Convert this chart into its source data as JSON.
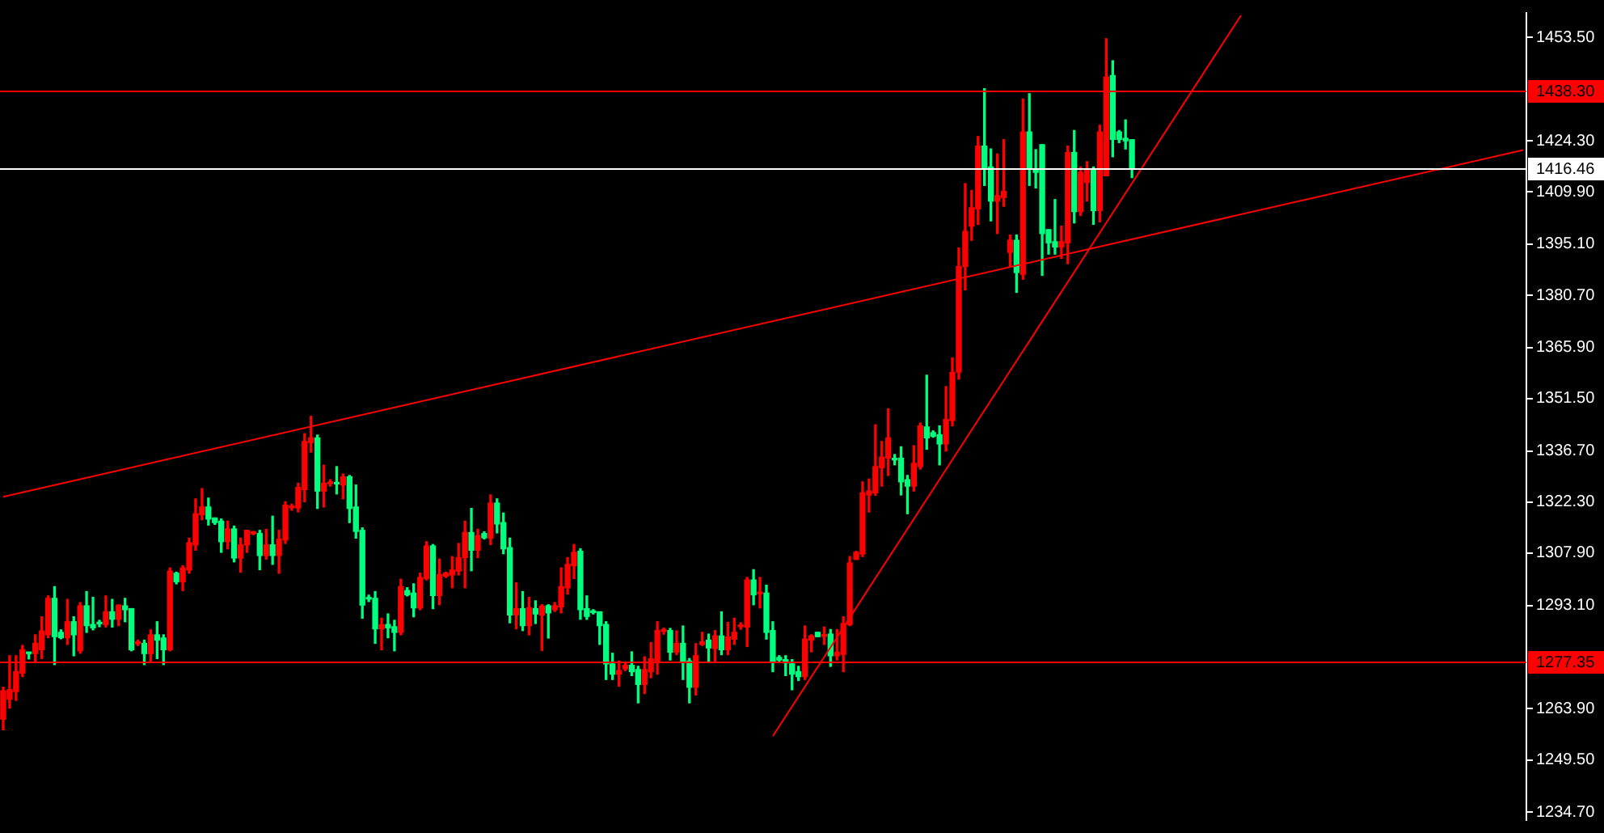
{
  "chart_data": {
    "type": "candlestick",
    "categories": [
      null,
      null,
      null,
      null,
      null,
      null,
      null,
      null,
      null,
      null,
      null,
      null,
      null,
      null,
      null,
      null,
      null,
      null,
      null,
      null,
      null,
      null,
      null,
      null,
      null,
      null,
      null,
      null,
      null,
      null,
      null,
      null,
      null,
      null,
      null,
      null,
      null,
      null,
      null,
      null,
      null,
      null,
      null,
      null,
      null,
      null,
      null,
      null,
      null,
      null,
      null,
      null,
      null,
      null,
      null,
      null,
      null,
      null,
      null,
      null,
      null,
      null,
      null,
      null,
      null,
      null,
      null,
      null,
      null,
      null,
      null,
      null,
      null,
      null,
      null,
      null,
      null,
      null,
      null,
      null,
      null,
      null,
      null,
      null,
      null,
      null,
      null,
      null,
      null,
      null,
      null,
      null,
      null,
      null,
      null,
      null,
      null,
      null,
      null,
      null,
      null,
      null,
      null,
      null,
      null,
      null,
      null,
      null,
      null,
      null,
      null,
      null,
      null,
      null,
      null,
      null,
      null,
      null,
      null,
      null,
      null,
      null,
      null,
      null,
      null,
      null,
      null,
      null,
      null,
      null,
      null,
      null,
      null,
      null,
      null,
      null,
      null,
      null,
      null,
      null,
      null,
      null,
      null,
      null,
      null,
      null,
      null,
      null,
      null,
      null,
      null,
      null,
      null,
      null,
      null,
      null,
      null,
      null,
      null,
      null,
      null,
      null,
      null,
      null,
      null,
      null,
      null,
      null,
      null,
      null,
      null,
      null,
      null,
      null,
      null,
      null,
      null,
      null,
      null,
      null,
      null,
      null,
      null,
      null,
      null,
      null,
      null,
      null,
      null,
      null,
      null,
      null,
      null,
      null,
      null,
      null,
      null,
      null,
      null,
      null,
      null,
      null,
      null,
      null,
      null,
      null,
      null,
      null,
      null,
      null,
      null,
      null,
      null,
      null,
      null,
      null,
      null,
      null,
      null,
      null,
      null,
      null,
      null,
      null,
      null,
      null,
      null,
      null,
      null,
      null,
      null,
      null,
      null,
      null,
      null,
      null,
      null,
      null
    ],
    "ohlc": [
      [
        1261,
        1270,
        1258,
        1269
      ],
      [
        1266.6,
        1278.9,
        1264.1,
        1269.3
      ],
      [
        1268.8,
        1278.9,
        1266.3,
        1274.4
      ],
      [
        1274,
        1281.8,
        1273,
        1280.6
      ],
      [
        1279.7,
        1279.7,
        1278,
        1279.5
      ],
      [
        1279.5,
        1284.8,
        1277.4,
        1282.4
      ],
      [
        1280.6,
        1289.9,
        1278.1,
        1285.9
      ],
      [
        1284.8,
        1295.8,
        1284,
        1295.1
      ],
      [
        1295.1,
        1298.4,
        1276.4,
        1284.3
      ],
      [
        1285.5,
        1286.2,
        1283.7,
        1284
      ],
      [
        1284,
        1294.8,
        1282.1,
        1288.5
      ],
      [
        1288.5,
        1289.9,
        1278.9,
        1284.8
      ],
      [
        1280.3,
        1293.9,
        1279.6,
        1293
      ],
      [
        1293,
        1297,
        1285.5,
        1287.4
      ],
      [
        1287.7,
        1295.4,
        1286.2,
        1286.8
      ],
      [
        1288.1,
        1288.9,
        1287.1,
        1287.9
      ],
      [
        1287.7,
        1295.8,
        1287,
        1291.3
      ],
      [
        1291.3,
        1294.8,
        1287,
        1289.2
      ],
      [
        1289.2,
        1293.2,
        1287.4,
        1293.2
      ],
      [
        1293,
        1295.1,
        1288.5,
        1291.9
      ],
      [
        1292.2,
        1292.2,
        1280.3,
        1280.6
      ],
      [
        1282.3,
        1283.3,
        1281.8,
        1282.8
      ],
      [
        1282.4,
        1283.3,
        1276.4,
        1279.5
      ],
      [
        1279.5,
        1286.2,
        1277.4,
        1284.8
      ],
      [
        1284.8,
        1288.5,
        1278.1,
        1283.3
      ],
      [
        1283.9,
        1284.8,
        1276.4,
        1280.6
      ],
      [
        1280.6,
        1303.7,
        1280.3,
        1302.8
      ],
      [
        1302.2,
        1302.5,
        1299.2,
        1299.8
      ],
      [
        1299.8,
        1304.3,
        1297.3,
        1303.7
      ],
      [
        1303.1,
        1312.1,
        1302.2,
        1310.8
      ],
      [
        1310.2,
        1323.2,
        1308.7,
        1319
      ],
      [
        1318.7,
        1326.1,
        1317.3,
        1320.9
      ],
      [
        1320.9,
        1323.4,
        1315.8,
        1317.5
      ],
      [
        1317.8,
        1317.8,
        1316,
        1316.5
      ],
      [
        1316.9,
        1317.5,
        1308.1,
        1311.1
      ],
      [
        1311.1,
        1316.9,
        1309.1,
        1314.7
      ],
      [
        1314.7,
        1315.5,
        1305.4,
        1306.5
      ],
      [
        1306.5,
        1312.1,
        1302.5,
        1310.2
      ],
      [
        1310.2,
        1314.3,
        1308.1,
        1314.3
      ],
      [
        1313.4,
        1314,
        1313.1,
        1313.7
      ],
      [
        1313.4,
        1314.3,
        1303.2,
        1307.2
      ],
      [
        1307.2,
        1314.6,
        1306.2,
        1310.2
      ],
      [
        1310.2,
        1318.3,
        1304.7,
        1307.2
      ],
      [
        1307.2,
        1314.3,
        1302.2,
        1311.8
      ],
      [
        1311.6,
        1322.4,
        1310.6,
        1321.4
      ],
      [
        1320.7,
        1321.7,
        1320,
        1321.1
      ],
      [
        1320.6,
        1327.6,
        1319.5,
        1326.4
      ],
      [
        1325.8,
        1341.6,
        1322.4,
        1339.4
      ],
      [
        1339.1,
        1346.5,
        1336.4,
        1340.4
      ],
      [
        1340.4,
        1341.2,
        1320.5,
        1325.4
      ],
      [
        1325.4,
        1332.7,
        1320.9,
        1327.6
      ],
      [
        1327.5,
        1328.6,
        1326.8,
        1327.8
      ],
      [
        1327.6,
        1332.3,
        1324.6,
        1327.4
      ],
      [
        1327.1,
        1330.2,
        1323.2,
        1329.4
      ],
      [
        1329.4,
        1329.8,
        1316.5,
        1320.5
      ],
      [
        1320.9,
        1327.1,
        1312.1,
        1314
      ],
      [
        1314.3,
        1315,
        1289.5,
        1293.2
      ],
      [
        1295.1,
        1296,
        1294.2,
        1294.9
      ],
      [
        1295.1,
        1297,
        1282.4,
        1286.5
      ],
      [
        1286.5,
        1289.5,
        1280.6,
        1287.7
      ],
      [
        1287.7,
        1290.7,
        1284,
        1286.8
      ],
      [
        1287.1,
        1288.9,
        1280.3,
        1285.5
      ],
      [
        1285.5,
        1300.5,
        1284.8,
        1298.4
      ],
      [
        1297.3,
        1298.1,
        1295.8,
        1296.1
      ],
      [
        1296.6,
        1299.2,
        1289.9,
        1292.4
      ],
      [
        1292.4,
        1302.2,
        1291.9,
        1301
      ],
      [
        1300.7,
        1311.1,
        1300.3,
        1309.9
      ],
      [
        1309.9,
        1310.3,
        1292.2,
        1295.9
      ],
      [
        1295.9,
        1306.2,
        1293.3,
        1301.8
      ],
      [
        1301.4,
        1302.5,
        1301,
        1302.2
      ],
      [
        1301.7,
        1306.9,
        1298.1,
        1303.1
      ],
      [
        1302.8,
        1310.6,
        1301.7,
        1306.6
      ],
      [
        1306.6,
        1316.9,
        1298.1,
        1313.7
      ],
      [
        1313.7,
        1320.5,
        1302.9,
        1308.7
      ],
      [
        1308.7,
        1314.6,
        1306.6,
        1312.8
      ],
      [
        1313.4,
        1313.9,
        1311.9,
        1312.2
      ],
      [
        1312.1,
        1324.3,
        1310.3,
        1322
      ],
      [
        1322,
        1323.2,
        1313.6,
        1316.1
      ],
      [
        1316.5,
        1319.2,
        1307.7,
        1309.1
      ],
      [
        1309.4,
        1312.1,
        1288.2,
        1290.4
      ],
      [
        1290.4,
        1299.5,
        1286.5,
        1292.2
      ],
      [
        1292.2,
        1297,
        1286,
        1287.4
      ],
      [
        1287.4,
        1295.4,
        1284.8,
        1292.4
      ],
      [
        1292.2,
        1294.4,
        1288,
        1290.7
      ],
      [
        1290.4,
        1293.3,
        1280.4,
        1292.9
      ],
      [
        1293,
        1293.3,
        1283.9,
        1291
      ],
      [
        1291.9,
        1293.9,
        1291.4,
        1293
      ],
      [
        1292.7,
        1303.7,
        1291,
        1298.4
      ],
      [
        1298.1,
        1306.6,
        1296.3,
        1304.7
      ],
      [
        1304.3,
        1310.3,
        1300.7,
        1308.1
      ],
      [
        1308.4,
        1309.1,
        1289.2,
        1291.9
      ],
      [
        1292.2,
        1295.8,
        1289.2,
        1290
      ],
      [
        1291.3,
        1291.9,
        1290.7,
        1291.1
      ],
      [
        1291.3,
        1291.3,
        1282.1,
        1287.4
      ],
      [
        1287.7,
        1288.5,
        1272.2,
        1276.6
      ],
      [
        1276.6,
        1279.6,
        1272.2,
        1273.7
      ],
      [
        1273.7,
        1277.4,
        1270.3,
        1274.7
      ],
      [
        1275.2,
        1276.7,
        1274.7,
        1276.2
      ],
      [
        1276.2,
        1280,
        1273.3,
        1274.4
      ],
      [
        1275,
        1275.9,
        1265.6,
        1270.8
      ],
      [
        1270.8,
        1278.6,
        1268.2,
        1275
      ],
      [
        1274.4,
        1282.6,
        1272.7,
        1278
      ],
      [
        1277.4,
        1288.5,
        1273.7,
        1286
      ],
      [
        1285.8,
        1286.7,
        1285,
        1286.1
      ],
      [
        1286,
        1286.6,
        1277.7,
        1279.9
      ],
      [
        1279.9,
        1285.9,
        1279.2,
        1282.4
      ],
      [
        1282.4,
        1287.3,
        1272.2,
        1277.1
      ],
      [
        1277.4,
        1278.1,
        1265.6,
        1270
      ],
      [
        1270,
        1282.3,
        1267.8,
        1278.9
      ],
      [
        1282.1,
        1285.5,
        1281.8,
        1282.8
      ],
      [
        1283.3,
        1285,
        1277.1,
        1281.1
      ],
      [
        1280.9,
        1286,
        1277.4,
        1284.5
      ],
      [
        1284.5,
        1291.3,
        1279.2,
        1280.6
      ],
      [
        1280.6,
        1288.3,
        1279.2,
        1284.2
      ],
      [
        1283.6,
        1289.5,
        1282.1,
        1285.5
      ],
      [
        1287.1,
        1288.2,
        1286.4,
        1287.4
      ],
      [
        1287,
        1301,
        1281.5,
        1300.3
      ],
      [
        1300.3,
        1303.2,
        1293.3,
        1296.1
      ],
      [
        1296.4,
        1301,
        1292.4,
        1296.7
      ],
      [
        1296.6,
        1298.8,
        1283.6,
        1285.5
      ],
      [
        1286,
        1288.5,
        1274.4,
        1277.1
      ],
      [
        1278.4,
        1278.9,
        1277.4,
        1277.7
      ],
      [
        1277.8,
        1278.9,
        1273.3,
        1276.9
      ],
      [
        1276.6,
        1277.8,
        1269.3,
        1273.7
      ],
      [
        1274.4,
        1275.9,
        1271.9,
        1273
      ],
      [
        1273,
        1287.3,
        1272.2,
        1283.6
      ],
      [
        1283.3,
        1284.8,
        1280,
        1284.5
      ],
      [
        1285.5,
        1285.5,
        1284.3,
        1284.3
      ],
      [
        1284.4,
        1287,
        1282.1,
        1284.6
      ],
      [
        1285,
        1286.3,
        1275.9,
        1278.9
      ],
      [
        1278.9,
        1286.3,
        1277.7,
        1279.9
      ],
      [
        1279.3,
        1289.9,
        1274.4,
        1288
      ],
      [
        1287.7,
        1306.9,
        1287.4,
        1305.1
      ],
      [
        1306.1,
        1308.4,
        1306.1,
        1308.1
      ],
      [
        1307.6,
        1328,
        1306.9,
        1324.9
      ],
      [
        1324.3,
        1328.8,
        1319.5,
        1325.4
      ],
      [
        1324.9,
        1344.1,
        1324.2,
        1332.3
      ],
      [
        1332,
        1339.4,
        1326.8,
        1335
      ],
      [
        1334.7,
        1348.6,
        1329.8,
        1340.4
      ],
      [
        1334.4,
        1335.7,
        1332.8,
        1334.2
      ],
      [
        1334.7,
        1337.9,
        1324.3,
        1328
      ],
      [
        1328.6,
        1329.8,
        1319,
        1326.8
      ],
      [
        1326.8,
        1338.2,
        1325.4,
        1333.2
      ],
      [
        1332.3,
        1344.6,
        1331.6,
        1343.8
      ],
      [
        1343.5,
        1358.1,
        1337.2,
        1340.4
      ],
      [
        1341.9,
        1342.4,
        1340.6,
        1340.9
      ],
      [
        1341.3,
        1343.8,
        1332.8,
        1338.7
      ],
      [
        1338.7,
        1354.9,
        1336.7,
        1345.6
      ],
      [
        1345.3,
        1363,
        1343.8,
        1358.9
      ],
      [
        1359,
        1394,
        1357,
        1388.8
      ],
      [
        1388.8,
        1412.2,
        1382.2,
        1398.7
      ],
      [
        1400.2,
        1410.3,
        1396.2,
        1405.4
      ],
      [
        1405.1,
        1425.5,
        1400.7,
        1422.8
      ],
      [
        1422.8,
        1439,
        1411.7,
        1416.4
      ],
      [
        1416.9,
        1422,
        1401.7,
        1407.3
      ],
      [
        1407.3,
        1420.6,
        1398.1,
        1408.8
      ],
      [
        1408.3,
        1424.6,
        1405.8,
        1410
      ],
      [
        1392.8,
        1397.7,
        1388.8,
        1396.2
      ],
      [
        1396.2,
        1397.7,
        1381.5,
        1387.1
      ],
      [
        1386.6,
        1436.1,
        1385.2,
        1426.8
      ],
      [
        1426.8,
        1437.6,
        1411.7,
        1416.4
      ],
      [
        1416.4,
        1421.8,
        1411,
        1415.4
      ],
      [
        1423.2,
        1423.2,
        1386.3,
        1398.1
      ],
      [
        1399.2,
        1399.2,
        1392.3,
        1395.5
      ],
      [
        1395.8,
        1407.7,
        1392.3,
        1394.3
      ],
      [
        1394.3,
        1400.2,
        1391.1,
        1395.8
      ],
      [
        1395.5,
        1422.8,
        1389.6,
        1421
      ],
      [
        1421,
        1427.2,
        1401.1,
        1404.3
      ],
      [
        1404.3,
        1416.9,
        1403.2,
        1415.4
      ],
      [
        1412.5,
        1418.4,
        1407.3,
        1416.4
      ],
      [
        1416.4,
        1416.9,
        1400.7,
        1404.6
      ],
      [
        1404.6,
        1428.7,
        1401.4,
        1426.8
      ],
      [
        1414.4,
        1453.1,
        1414.4,
        1442.3
      ],
      [
        1442.7,
        1446.9,
        1419.8,
        1424.7
      ],
      [
        1426.8,
        1427.2,
        1423.8,
        1424.7
      ],
      [
        1425,
        1430.2,
        1422,
        1424.3
      ],
      [
        1424.6,
        1424.6,
        1413.9,
        1416.4
      ],
      null,
      null,
      null,
      null,
      null,
      null,
      null,
      null,
      null,
      null,
      null,
      null,
      null,
      null,
      null,
      null,
      null,
      null,
      null,
      null,
      null,
      null,
      null,
      null,
      null,
      null,
      null,
      null,
      null,
      null,
      null,
      null,
      null,
      null,
      null,
      null,
      null,
      null,
      null,
      null,
      null,
      null,
      null,
      null,
      null,
      null,
      null,
      null,
      null,
      null,
      null,
      null,
      null,
      null,
      null,
      null,
      null,
      null,
      null,
      null,
      null
    ],
    "colors": [
      "#ff0000",
      "#ff0000",
      "#ff0000",
      "#ff0000",
      "#00ff7f",
      "#ff0000",
      "#ff0000",
      "#ff0000",
      "#00ff7f",
      "#00ff7f",
      "#ff0000",
      "#00ff7f",
      "#ff0000",
      "#00ff7f",
      "#00ff7f",
      "#00ff7f",
      "#ff0000",
      "#00ff7f",
      "#ff0000",
      "#00ff7f",
      "#00ff7f",
      "#ff0000",
      "#00ff7f",
      "#ff0000",
      "#00ff7f",
      "#00ff7f",
      "#ff0000",
      "#00ff7f",
      "#ff0000",
      "#ff0000",
      "#ff0000",
      "#ff0000",
      "#00ff7f",
      "#00ff7f",
      "#00ff7f",
      "#ff0000",
      "#00ff7f",
      "#ff0000",
      "#ff0000",
      "#ff0000",
      "#00ff7f",
      "#ff0000",
      "#00ff7f",
      "#ff0000",
      "#ff0000",
      "#ff0000",
      "#ff0000",
      "#ff0000",
      "#ff0000",
      "#00ff7f",
      "#ff0000",
      "#ff0000",
      "#00ff7f",
      "#ff0000",
      "#00ff7f",
      "#00ff7f",
      "#00ff7f",
      "#00ff7f",
      "#00ff7f",
      "#ff0000",
      "#00ff7f",
      "#00ff7f",
      "#ff0000",
      "#00ff7f",
      "#00ff7f",
      "#ff0000",
      "#ff0000",
      "#00ff7f",
      "#ff0000",
      "#ff0000",
      "#ff0000",
      "#ff0000",
      "#ff0000",
      "#00ff7f",
      "#ff0000",
      "#00ff7f",
      "#ff0000",
      "#00ff7f",
      "#00ff7f",
      "#00ff7f",
      "#ff0000",
      "#00ff7f",
      "#ff0000",
      "#00ff7f",
      "#ff0000",
      "#00ff7f",
      "#ff0000",
      "#ff0000",
      "#ff0000",
      "#ff0000",
      "#00ff7f",
      "#00ff7f",
      "#00ff7f",
      "#00ff7f",
      "#00ff7f",
      "#00ff7f",
      "#ff0000",
      "#ff0000",
      "#00ff7f",
      "#00ff7f",
      "#ff0000",
      "#ff0000",
      "#ff0000",
      "#ff0000",
      "#00ff7f",
      "#ff0000",
      "#00ff7f",
      "#00ff7f",
      "#ff0000",
      "#ff0000",
      "#00ff7f",
      "#ff0000",
      "#00ff7f",
      "#ff0000",
      "#ff0000",
      "#ff0000",
      "#ff0000",
      "#00ff7f",
      "#ff0000",
      "#00ff7f",
      "#00ff7f",
      "#00ff7f",
      "#00ff7f",
      "#00ff7f",
      "#00ff7f",
      "#ff0000",
      "#ff0000",
      "#00ff7f",
      "#ff0000",
      "#00ff7f",
      "#ff0000",
      "#ff0000",
      "#ff0000",
      "#ff0000",
      "#ff0000",
      "#ff0000",
      "#ff0000",
      "#ff0000",
      "#ff0000",
      "#00ff7f",
      "#00ff7f",
      "#00ff7f",
      "#ff0000",
      "#ff0000",
      "#00ff7f",
      "#00ff7f",
      "#00ff7f",
      "#ff0000",
      "#ff0000",
      "#ff0000",
      "#ff0000",
      "#ff0000",
      "#ff0000",
      "#00ff7f",
      "#00ff7f",
      "#ff0000",
      "#ff0000",
      "#ff0000",
      "#00ff7f",
      "#ff0000",
      "#00ff7f",
      "#00ff7f",
      "#00ff7f",
      "#00ff7f",
      "#00ff7f",
      "#ff0000",
      "#ff0000",
      "#00ff7f",
      "#ff0000",
      "#ff0000",
      "#00ff7f",
      "#ff0000",
      "#ff0000",
      "#00ff7f",
      "#00ff7f",
      "#00ff7f",
      "#00ff7f",
      null,
      null,
      null,
      null,
      null,
      null,
      null,
      null,
      null,
      null,
      null,
      null,
      null,
      null,
      null,
      null,
      null,
      null,
      null,
      null,
      null,
      null,
      null,
      null,
      null,
      null,
      null,
      null,
      null,
      null,
      null,
      null,
      null,
      null,
      null,
      null,
      null,
      null,
      null,
      null,
      null,
      null,
      null,
      null,
      null,
      null,
      null,
      null,
      null,
      null,
      null,
      null,
      null,
      null,
      null,
      null,
      null,
      null,
      null,
      null,
      null
    ],
    "series": [
      {
        "type": "line",
        "color": "#ff0000",
        "values": [
          1323.8,
          null,
          null,
          null,
          null,
          null,
          null,
          null,
          null,
          null,
          null,
          null,
          null,
          null,
          null,
          null,
          null,
          null,
          null,
          null,
          null,
          null,
          null,
          null,
          null,
          null,
          null,
          null,
          null,
          null,
          null,
          null,
          null,
          null,
          null,
          null,
          null,
          null,
          null,
          null,
          null,
          null,
          null,
          null,
          null,
          null,
          null,
          null,
          null,
          null,
          null,
          null,
          null,
          null,
          null,
          null,
          null,
          null,
          null,
          null,
          null,
          null,
          null,
          null,
          null,
          null,
          null,
          null,
          null,
          null,
          null,
          null,
          null,
          null,
          null,
          null,
          null,
          null,
          null,
          null,
          null,
          null,
          null,
          null,
          null,
          null,
          null,
          null,
          null,
          null,
          null,
          null,
          null,
          null,
          null,
          null,
          null,
          null,
          null,
          null,
          null,
          null,
          null,
          null,
          null,
          null,
          null,
          null,
          null,
          null,
          null,
          null,
          null,
          null,
          null,
          null,
          null,
          null,
          null,
          null,
          null,
          null,
          null,
          null,
          null,
          null,
          null,
          null,
          null,
          null,
          null,
          null,
          null,
          null,
          null,
          null,
          null,
          null,
          null,
          null,
          null,
          null,
          null,
          null,
          null,
          null,
          null,
          null,
          null,
          null,
          null,
          null,
          null,
          null,
          null,
          null,
          null,
          null,
          null,
          null,
          null,
          null,
          null,
          null,
          null,
          null,
          null,
          null,
          null,
          null,
          null,
          null,
          null,
          null,
          null,
          null,
          null,
          null,
          null,
          null,
          null,
          null,
          null,
          null,
          null,
          null,
          null,
          null,
          null,
          null,
          null,
          null,
          null,
          null,
          null,
          null,
          null,
          null,
          null,
          null,
          null,
          null,
          null,
          null,
          null,
          null,
          null,
          null,
          null,
          null,
          null,
          null,
          null,
          null,
          null,
          null,
          null,
          null,
          null,
          null,
          null,
          null,
          null,
          null,
          null,
          null,
          null,
          null,
          null,
          null,
          null,
          null,
          null,
          null,
          null,
          null,
          null,
          1421.7
        ]
      },
      {
        "type": "line",
        "color": "#ff0000",
        "values": [
          null,
          null,
          null,
          null,
          null,
          null,
          null,
          null,
          null,
          null,
          null,
          null,
          null,
          null,
          null,
          null,
          null,
          null,
          null,
          null,
          null,
          null,
          null,
          null,
          null,
          null,
          null,
          null,
          null,
          null,
          null,
          null,
          null,
          null,
          null,
          null,
          null,
          null,
          null,
          null,
          null,
          null,
          null,
          null,
          null,
          null,
          null,
          null,
          null,
          null,
          null,
          null,
          null,
          null,
          null,
          null,
          null,
          null,
          null,
          null,
          null,
          null,
          null,
          null,
          null,
          null,
          null,
          null,
          null,
          null,
          null,
          null,
          null,
          null,
          null,
          null,
          null,
          null,
          null,
          null,
          null,
          null,
          null,
          null,
          null,
          null,
          null,
          null,
          null,
          null,
          null,
          null,
          null,
          null,
          null,
          null,
          null,
          null,
          null,
          null,
          null,
          null,
          null,
          null,
          null,
          null,
          null,
          null,
          null,
          null,
          null,
          null,
          null,
          null,
          null,
          null,
          null,
          null,
          null,
          null,
          1256.2,
          null,
          null,
          null,
          null,
          null,
          null,
          null,
          null,
          null,
          null,
          null,
          null,
          null,
          null,
          null,
          null,
          null,
          null,
          null,
          null,
          null,
          null,
          null,
          null,
          null,
          null,
          null,
          null,
          null,
          null,
          null,
          null,
          null,
          null,
          null,
          null,
          null,
          null,
          null,
          null,
          null,
          null,
          null,
          null,
          null,
          null,
          null,
          null,
          null,
          null,
          null,
          null,
          null,
          null,
          null,
          null,
          null,
          null,
          null,
          null,
          null,
          null,
          null,
          null,
          null,
          null,
          null,
          null,
          null,
          null,
          null,
          null,
          1459.7,
          null,
          null,
          null,
          null,
          null,
          null,
          null,
          null,
          null,
          null,
          null,
          null,
          null,
          null,
          null,
          null,
          null,
          null,
          null,
          null,
          null,
          null,
          null,
          null,
          null,
          null,
          null,
          null,
          null,
          null,
          null,
          null,
          null,
          null,
          null,
          null,
          null,
          null,
          null,
          null,
          null,
          null,
          null,
          null
        ]
      }
    ],
    "ylim": [
      1232.5,
      1460.4
    ],
    "yticks": [
      {
        "value": 1453.5,
        "label": "1453.50"
      },
      {
        "value": 1424.3,
        "label": "1424.30"
      },
      {
        "value": 1409.9,
        "label": "1409.90"
      },
      {
        "value": 1395.1,
        "label": "1395.10"
      },
      {
        "value": 1380.7,
        "label": "1380.70"
      },
      {
        "value": 1365.9,
        "label": "1365.90"
      },
      {
        "value": 1351.5,
        "label": "1351.50"
      },
      {
        "value": 1336.7,
        "label": "1336.70"
      },
      {
        "value": 1322.3,
        "label": "1322.30"
      },
      {
        "value": 1307.9,
        "label": "1307.90"
      },
      {
        "value": 1293.1,
        "label": "1293.10"
      },
      {
        "value": 1263.9,
        "label": "1263.90"
      },
      {
        "value": 1249.5,
        "label": "1249.50"
      },
      {
        "value": 1234.7,
        "label": "1234.70"
      }
    ],
    "ref_lines": [
      {
        "axis": "y",
        "value": 1438.3,
        "label": "1438.30",
        "color": "#ff0000"
      },
      {
        "axis": "y",
        "value": 1416.46,
        "label": "1416.46",
        "color": "#ffffff"
      },
      {
        "axis": "y",
        "value": 1277.35,
        "label": "1277.35",
        "color": "#ff0000"
      }
    ],
    "tick_labels": "y"
  }
}
